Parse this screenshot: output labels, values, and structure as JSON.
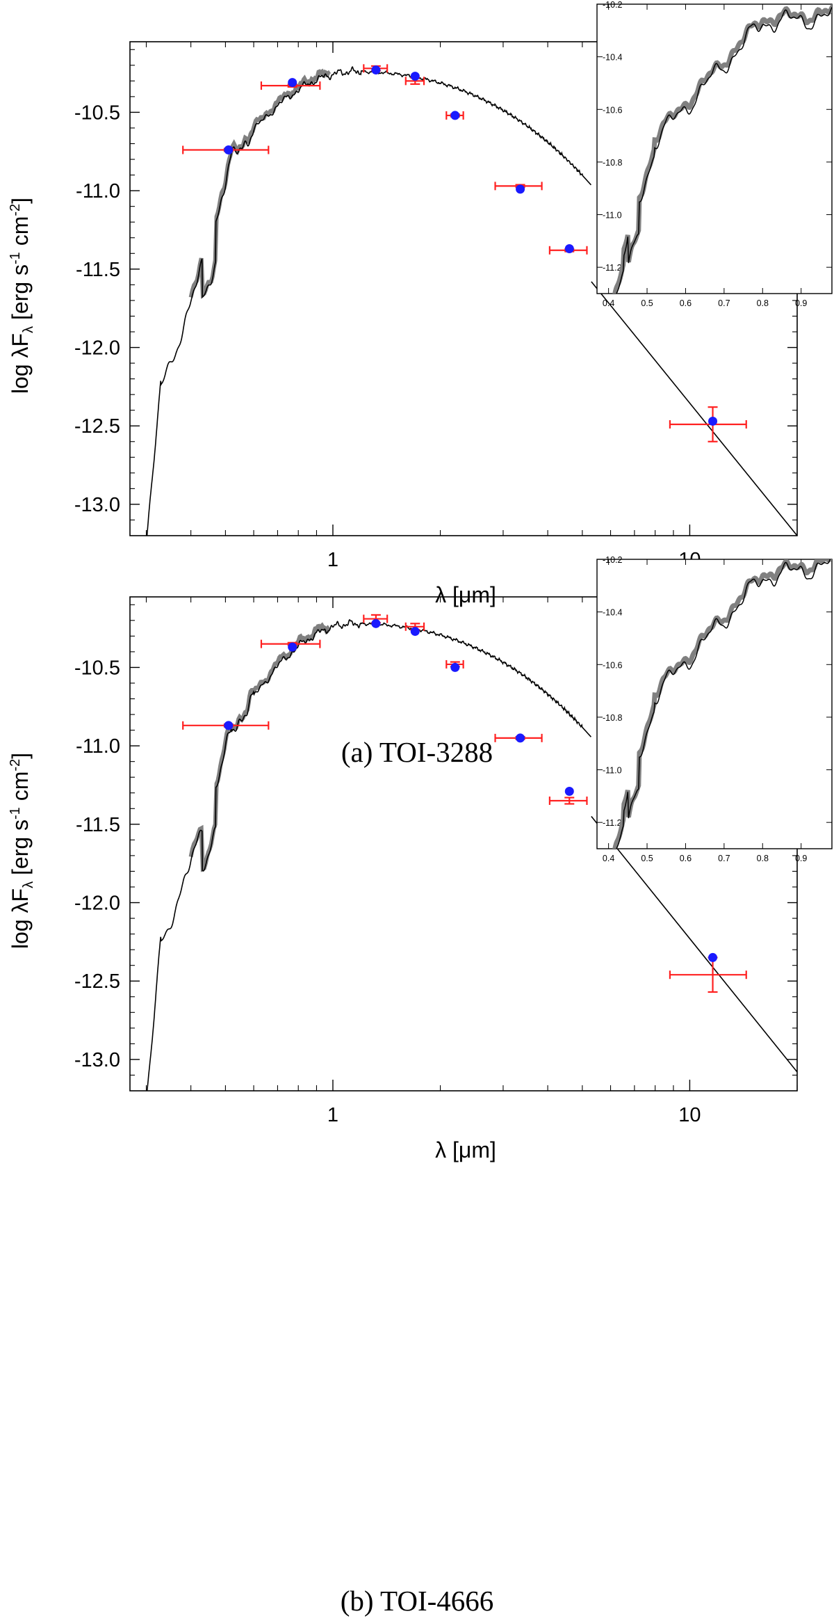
{
  "chart_data": [
    {
      "type": "scatter",
      "caption": "(a) TOI-3288",
      "xlabel_main": "λ [μm]",
      "ylabel_parts": {
        "pre": "log λF",
        "sub": "λ",
        "mid1": " [erg s",
        "sup1": "-1",
        "mid2": " cm",
        "sup2": "-2",
        "post": "]"
      },
      "xscale": "log",
      "xlim": [
        0.27,
        20
      ],
      "ylim": [
        -13.2,
        -10.05
      ],
      "xticks": [
        1,
        10
      ],
      "xtick_labels": [
        "1",
        "10"
      ],
      "yticks": [
        -10.5,
        -11.0,
        -11.5,
        -12.0,
        -12.5,
        -13.0
      ],
      "ytick_labels": [
        "-10.5",
        "-11.0",
        "-11.5",
        "-12.0",
        "-12.5",
        "-13.0"
      ],
      "photometry": [
        {
          "x": 0.51,
          "y": -10.74,
          "xerr": [
            0.38,
            0.66
          ],
          "yerr": 0.0,
          "model": -10.74
        },
        {
          "x": 0.77,
          "y": -10.33,
          "xerr": [
            0.63,
            0.92
          ],
          "yerr": 0.0,
          "model": -10.31
        },
        {
          "x": 1.32,
          "y": -10.22,
          "xerr": [
            1.22,
            1.42
          ],
          "yerr": 0.015,
          "model": -10.23
        },
        {
          "x": 1.7,
          "y": -10.3,
          "xerr": [
            1.6,
            1.8
          ],
          "yerr": 0.02,
          "model": -10.27
        },
        {
          "x": 2.2,
          "y": -10.52,
          "xerr": [
            2.08,
            2.32
          ],
          "yerr": 0.0,
          "model": -10.52
        },
        {
          "x": 3.35,
          "y": -10.97,
          "xerr": [
            2.85,
            3.85
          ],
          "yerr": 0.0,
          "model": -10.99
        },
        {
          "x": 4.6,
          "y": -11.38,
          "xerr": [
            4.05,
            5.15
          ],
          "yerr": 0.0,
          "model": -11.37
        },
        {
          "x": 11.6,
          "y": -12.49,
          "xerr": [
            8.8,
            14.4
          ],
          "yerr": 0.11,
          "model": -12.47
        }
      ],
      "inset": {
        "xlim": [
          0.37,
          0.98
        ],
        "ylim": [
          -11.3,
          -10.2
        ],
        "xticks": [
          0.4,
          0.5,
          0.6,
          0.7,
          0.8,
          0.9
        ],
        "xtick_labels": [
          "0.4",
          "0.5",
          "0.6",
          "0.7",
          "0.8",
          "0.9"
        ],
        "yticks": [
          -10.2,
          -10.4,
          -10.6,
          -10.8,
          -11.0,
          -11.2
        ],
        "ytick_labels": [
          "-10.2",
          "-10.4",
          "-10.6",
          "-10.8",
          "-11.0",
          "-11.2"
        ]
      }
    },
    {
      "type": "scatter",
      "caption": "(b) TOI-4666",
      "xlabel_main": "λ [μm]",
      "ylabel_parts": {
        "pre": "log λF",
        "sub": "λ",
        "mid1": " [erg s",
        "sup1": "-1",
        "mid2": " cm",
        "sup2": "-2",
        "post": "]"
      },
      "xscale": "log",
      "xlim": [
        0.27,
        20
      ],
      "ylim": [
        -13.2,
        -10.05
      ],
      "xticks": [
        1,
        10
      ],
      "xtick_labels": [
        "1",
        "10"
      ],
      "yticks": [
        -10.5,
        -11.0,
        -11.5,
        -12.0,
        -12.5,
        -13.0
      ],
      "ytick_labels": [
        "-10.5",
        "-11.0",
        "-11.5",
        "-12.0",
        "-12.5",
        "-13.0"
      ],
      "photometry": [
        {
          "x": 0.51,
          "y": -10.87,
          "xerr": [
            0.38,
            0.66
          ],
          "yerr": 0.0,
          "model": -10.87
        },
        {
          "x": 0.77,
          "y": -10.35,
          "xerr": [
            0.63,
            0.92
          ],
          "yerr": 0.0,
          "model": -10.37
        },
        {
          "x": 1.32,
          "y": -10.19,
          "xerr": [
            1.22,
            1.42
          ],
          "yerr": 0.025,
          "model": -10.22
        },
        {
          "x": 1.7,
          "y": -10.24,
          "xerr": [
            1.6,
            1.8
          ],
          "yerr": 0.02,
          "model": -10.27
        },
        {
          "x": 2.2,
          "y": -10.48,
          "xerr": [
            2.08,
            2.32
          ],
          "yerr": 0.015,
          "model": -10.5
        },
        {
          "x": 3.35,
          "y": -10.95,
          "xerr": [
            2.85,
            3.85
          ],
          "yerr": 0.0,
          "model": -10.95
        },
        {
          "x": 4.6,
          "y": -11.35,
          "xerr": [
            4.05,
            5.15
          ],
          "yerr": 0.02,
          "model": -11.29
        },
        {
          "x": 11.6,
          "y": -12.46,
          "xerr": [
            8.8,
            14.4
          ],
          "yerr": 0.11,
          "model": -12.35
        }
      ],
      "inset": {
        "xlim": [
          0.37,
          0.98
        ],
        "ylim": [
          -11.3,
          -10.2
        ],
        "xticks": [
          0.4,
          0.5,
          0.6,
          0.7,
          0.8,
          0.9
        ],
        "xtick_labels": [
          "0.4",
          "0.5",
          "0.6",
          "0.7",
          "0.8",
          "0.9"
        ],
        "yticks": [
          -10.2,
          -10.4,
          -10.6,
          -10.8,
          -11.0,
          -11.2
        ],
        "ytick_labels": [
          "-10.2",
          "-10.4",
          "-10.6",
          "-10.8",
          "-11.0",
          "-11.2"
        ]
      }
    }
  ]
}
